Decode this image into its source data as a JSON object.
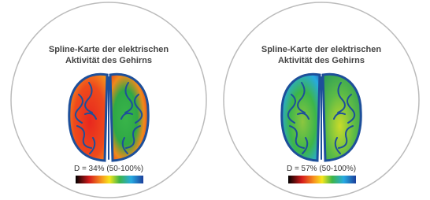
{
  "panels": [
    {
      "title_lines": [
        "Spline-Karte der elektrischen",
        "Aktivität des Gehirns"
      ],
      "label": "D = 34% (50-100%)"
    },
    {
      "title_lines": [
        "Spline-Karte der elektrischen",
        "Aktivität des Gehirns"
      ],
      "label": "D = 57% (50-100%)"
    }
  ]
}
